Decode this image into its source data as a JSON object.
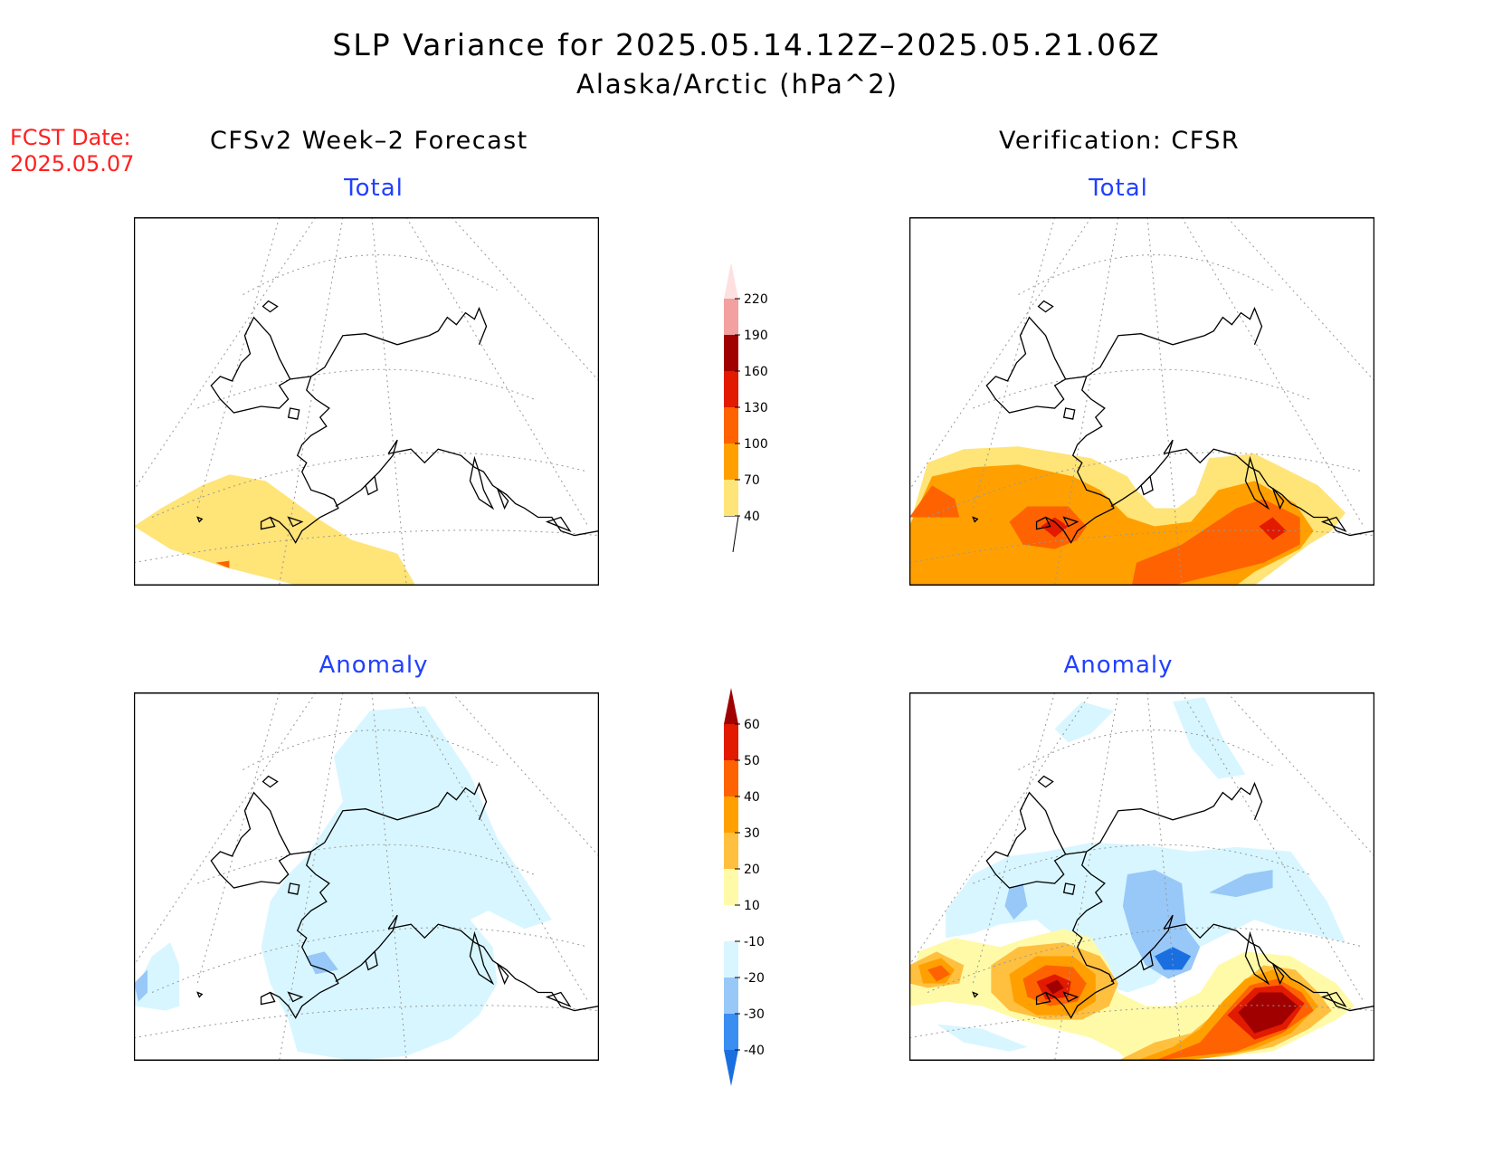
{
  "header": {
    "title": "SLP Variance for 2025.05.14.12Z–2025.05.21.06Z",
    "subtitle": "Alaska/Arctic (hPa^2)"
  },
  "fcst": {
    "label": "FCST Date:",
    "date": "2025.05.07"
  },
  "columns": {
    "left": "CFSv2 Week–2 Forecast",
    "right": "Verification: CFSR"
  },
  "panels": {
    "forecast_total": {
      "title": "Total"
    },
    "verification_total": {
      "title": "Total"
    },
    "forecast_anomaly": {
      "title": "Anomaly"
    },
    "verification_anomaly": {
      "title": "Anomaly"
    }
  },
  "colorbars": {
    "total": {
      "labels": [
        "40",
        "70",
        "100",
        "130",
        "160",
        "190",
        "220"
      ],
      "colors": [
        "#ffe477",
        "#ffa000",
        "#ff6200",
        "#e11a00",
        "#a00000",
        "#f2a0a0",
        "#ffe0e0"
      ]
    },
    "anomaly": {
      "labels": [
        "-40",
        "-30",
        "-20",
        "-10",
        "10",
        "20",
        "30",
        "40",
        "50",
        "60"
      ],
      "colors": [
        "#1a6fe0",
        "#3a8ef2",
        "#98c8f8",
        "#d8f6ff",
        "#ffffff",
        "#fffaa8",
        "#ffc040",
        "#ffa000",
        "#ff6200",
        "#e11a00",
        "#a00000"
      ]
    }
  },
  "colors": {
    "title_text": "#000000",
    "fcst_text": "#ff2020",
    "panel_title": "#2040ff"
  }
}
